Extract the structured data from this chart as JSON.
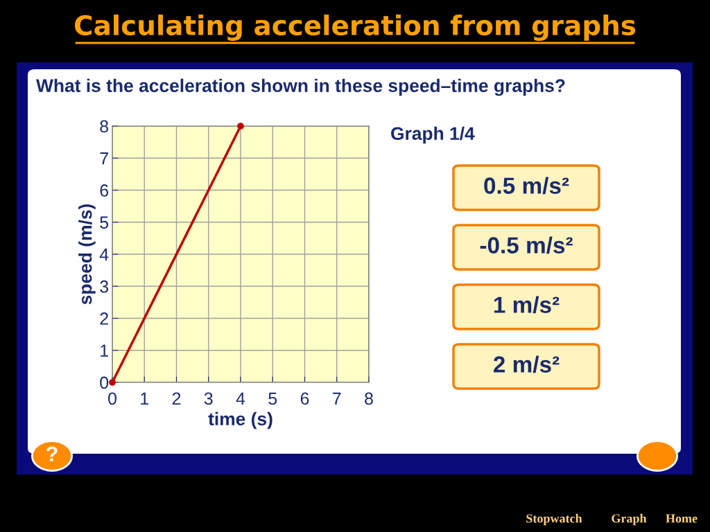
{
  "chart_data": {
    "type": "line",
    "title": "Calculating acceleration from graphs",
    "subtitle": "What is the acceleration shown in these speed–time graphs?",
    "xlabel": "time (s)",
    "ylabel": "speed (m/s)",
    "x": [
      0,
      4
    ],
    "series": [
      {
        "color": "#c00000",
        "values": [
          0,
          8
        ]
      }
    ],
    "xlim": [
      0,
      8
    ],
    "ylim": [
      0,
      8
    ],
    "xticks": [
      0,
      1,
      2,
      3,
      4,
      5,
      6,
      7,
      8
    ],
    "yticks": [
      0,
      1,
      2,
      3,
      4,
      5,
      6,
      7,
      8
    ],
    "grid": true,
    "marker": "circle",
    "line_style": "solid",
    "legend": false,
    "annotations": [
      "Graph 1/4",
      "0.5 m/s²",
      "-0.5 m/s²",
      "1 m/s²",
      "2 m/s²",
      "?",
      "Stopwatch",
      "Graph",
      "Home"
    ]
  }
}
